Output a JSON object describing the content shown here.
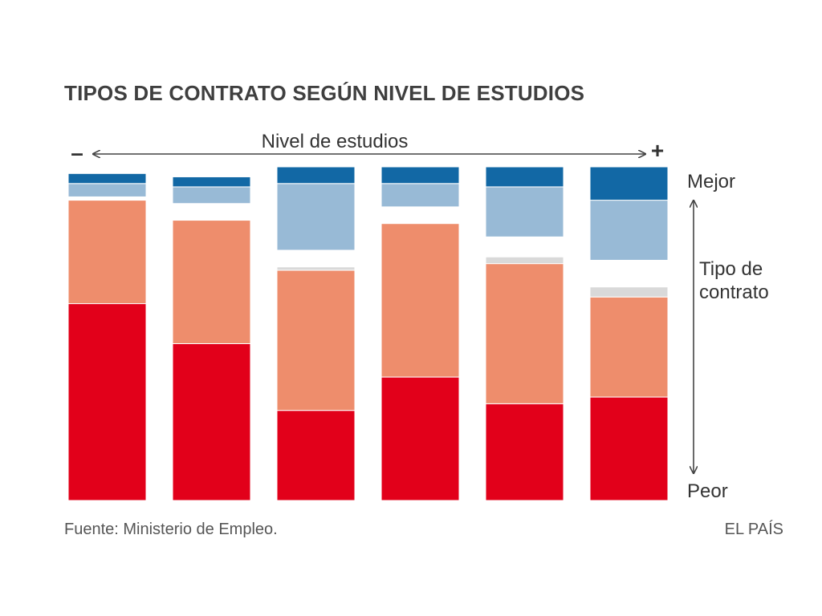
{
  "chart_data": {
    "type": "bar",
    "stacked": true,
    "normalized": true,
    "title": "TIPOS DE CONTRATO SEGÚN NIVEL DE ESTUDIOS",
    "x_axis": {
      "label": "Nivel de estudios",
      "low_end": "–",
      "high_end": "+"
    },
    "y_axis": {
      "label": "Tipo de contrato",
      "top": "Mejor",
      "bottom": "Peor"
    },
    "categories": [
      "",
      "",
      "",
      "",
      "",
      ""
    ],
    "segments_bottom_to_top": [
      {
        "color": "#e2001a",
        "values": [
          59,
          47,
          27,
          37,
          29,
          31
        ]
      },
      {
        "color": "#ee8d6c",
        "values": [
          31,
          37,
          42,
          46,
          42,
          30
        ]
      },
      {
        "color": "#d9d9d9",
        "values": [
          0,
          0,
          1,
          0,
          2,
          3
        ]
      },
      {
        "color": "#ffffff",
        "values": [
          1,
          5,
          5,
          5,
          6,
          8
        ]
      },
      {
        "color": "#98bad6",
        "values": [
          4,
          5,
          20,
          7,
          15,
          18
        ]
      },
      {
        "color": "#1268a5",
        "values": [
          3,
          3,
          5,
          5,
          6,
          10
        ]
      }
    ],
    "ylim": [
      0,
      100
    ],
    "grid": false,
    "legend": "none"
  },
  "footer": {
    "source": "Fuente: Ministerio de Empleo.",
    "brand": "EL PAÍS"
  }
}
